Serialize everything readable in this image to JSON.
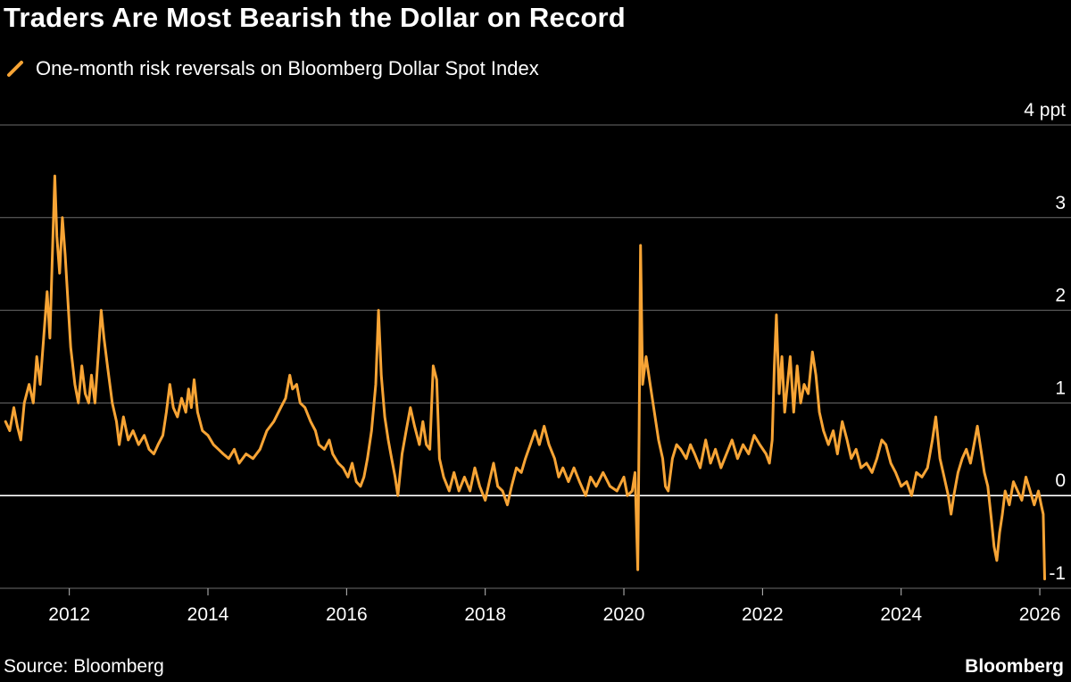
{
  "title": "Traders Are Most Bearish the Dollar on Record",
  "source": "Source: Bloomberg",
  "brand": "Bloomberg",
  "colors": {
    "series": "#f7a435",
    "grid": "#6b6b6b",
    "zero_line": "#ffffff",
    "background": "#000000",
    "text": "#ffffff"
  },
  "chart_data": {
    "type": "line",
    "title": "Traders Are Most Bearish the Dollar on Record",
    "xlabel": "",
    "ylabel": "",
    "y_unit": "ppt",
    "ylim": [
      -1,
      4
    ],
    "xlim": [
      2011.0,
      2026.45
    ],
    "grid": true,
    "legend_position": "top-left",
    "x_ticks": [
      2012,
      2014,
      2016,
      2018,
      2020,
      2022,
      2024,
      2026
    ],
    "x_tick_labels": [
      "2012",
      "2014",
      "2016",
      "2018",
      "2020",
      "2022",
      "2024",
      "2026"
    ],
    "y_ticks": [
      -1,
      0,
      1,
      2,
      3,
      4
    ],
    "y_tick_labels": [
      "-1",
      "0",
      "1",
      "2",
      "3",
      "4 ppt"
    ],
    "series": [
      {
        "name": "One-month risk reversals on Bloomberg Dollar Spot Index",
        "color": "#f7a435",
        "points": [
          [
            2011.08,
            0.8
          ],
          [
            2011.14,
            0.7
          ],
          [
            2011.2,
            0.95
          ],
          [
            2011.25,
            0.75
          ],
          [
            2011.3,
            0.6
          ],
          [
            2011.35,
            1.0
          ],
          [
            2011.42,
            1.2
          ],
          [
            2011.48,
            1.0
          ],
          [
            2011.53,
            1.5
          ],
          [
            2011.58,
            1.2
          ],
          [
            2011.63,
            1.7
          ],
          [
            2011.68,
            2.2
          ],
          [
            2011.72,
            1.7
          ],
          [
            2011.76,
            2.7
          ],
          [
            2011.79,
            3.45
          ],
          [
            2011.82,
            2.8
          ],
          [
            2011.86,
            2.4
          ],
          [
            2011.9,
            3.0
          ],
          [
            2011.94,
            2.6
          ],
          [
            2011.98,
            2.1
          ],
          [
            2012.02,
            1.6
          ],
          [
            2012.08,
            1.2
          ],
          [
            2012.13,
            1.0
          ],
          [
            2012.18,
            1.4
          ],
          [
            2012.23,
            1.1
          ],
          [
            2012.28,
            1.0
          ],
          [
            2012.32,
            1.3
          ],
          [
            2012.37,
            1.0
          ],
          [
            2012.42,
            1.55
          ],
          [
            2012.46,
            2.0
          ],
          [
            2012.5,
            1.7
          ],
          [
            2012.55,
            1.4
          ],
          [
            2012.62,
            1.0
          ],
          [
            2012.68,
            0.8
          ],
          [
            2012.72,
            0.55
          ],
          [
            2012.78,
            0.85
          ],
          [
            2012.85,
            0.6
          ],
          [
            2012.92,
            0.7
          ],
          [
            2013.0,
            0.55
          ],
          [
            2013.08,
            0.65
          ],
          [
            2013.15,
            0.5
          ],
          [
            2013.22,
            0.45
          ],
          [
            2013.28,
            0.55
          ],
          [
            2013.35,
            0.65
          ],
          [
            2013.4,
            0.9
          ],
          [
            2013.45,
            1.2
          ],
          [
            2013.5,
            0.95
          ],
          [
            2013.56,
            0.85
          ],
          [
            2013.62,
            1.05
          ],
          [
            2013.68,
            0.9
          ],
          [
            2013.72,
            1.15
          ],
          [
            2013.76,
            0.95
          ],
          [
            2013.8,
            1.25
          ],
          [
            2013.85,
            0.9
          ],
          [
            2013.92,
            0.7
          ],
          [
            2014.0,
            0.65
          ],
          [
            2014.08,
            0.55
          ],
          [
            2014.15,
            0.5
          ],
          [
            2014.22,
            0.45
          ],
          [
            2014.3,
            0.4
          ],
          [
            2014.38,
            0.5
          ],
          [
            2014.45,
            0.35
          ],
          [
            2014.55,
            0.45
          ],
          [
            2014.65,
            0.4
          ],
          [
            2014.75,
            0.5
          ],
          [
            2014.85,
            0.7
          ],
          [
            2014.95,
            0.8
          ],
          [
            2015.05,
            0.95
          ],
          [
            2015.12,
            1.05
          ],
          [
            2015.18,
            1.3
          ],
          [
            2015.22,
            1.15
          ],
          [
            2015.28,
            1.2
          ],
          [
            2015.33,
            1.0
          ],
          [
            2015.4,
            0.95
          ],
          [
            2015.48,
            0.8
          ],
          [
            2015.55,
            0.7
          ],
          [
            2015.6,
            0.55
          ],
          [
            2015.68,
            0.5
          ],
          [
            2015.75,
            0.6
          ],
          [
            2015.8,
            0.45
          ],
          [
            2015.88,
            0.35
          ],
          [
            2015.95,
            0.3
          ],
          [
            2016.02,
            0.2
          ],
          [
            2016.08,
            0.35
          ],
          [
            2016.14,
            0.15
          ],
          [
            2016.2,
            0.1
          ],
          [
            2016.25,
            0.2
          ],
          [
            2016.3,
            0.4
          ],
          [
            2016.36,
            0.7
          ],
          [
            2016.42,
            1.2
          ],
          [
            2016.46,
            2.0
          ],
          [
            2016.5,
            1.3
          ],
          [
            2016.55,
            0.85
          ],
          [
            2016.6,
            0.6
          ],
          [
            2016.65,
            0.4
          ],
          [
            2016.7,
            0.2
          ],
          [
            2016.74,
            0.0
          ],
          [
            2016.8,
            0.45
          ],
          [
            2016.86,
            0.7
          ],
          [
            2016.92,
            0.95
          ],
          [
            2016.98,
            0.75
          ],
          [
            2017.05,
            0.55
          ],
          [
            2017.1,
            0.8
          ],
          [
            2017.15,
            0.55
          ],
          [
            2017.2,
            0.5
          ],
          [
            2017.25,
            1.4
          ],
          [
            2017.3,
            1.25
          ],
          [
            2017.34,
            0.4
          ],
          [
            2017.4,
            0.2
          ],
          [
            2017.48,
            0.05
          ],
          [
            2017.55,
            0.25
          ],
          [
            2017.62,
            0.05
          ],
          [
            2017.7,
            0.2
          ],
          [
            2017.78,
            0.05
          ],
          [
            2017.85,
            0.3
          ],
          [
            2017.92,
            0.1
          ],
          [
            2018.0,
            -0.05
          ],
          [
            2018.06,
            0.15
          ],
          [
            2018.12,
            0.35
          ],
          [
            2018.18,
            0.1
          ],
          [
            2018.25,
            0.05
          ],
          [
            2018.32,
            -0.1
          ],
          [
            2018.38,
            0.1
          ],
          [
            2018.45,
            0.3
          ],
          [
            2018.52,
            0.25
          ],
          [
            2018.58,
            0.4
          ],
          [
            2018.65,
            0.55
          ],
          [
            2018.72,
            0.7
          ],
          [
            2018.78,
            0.55
          ],
          [
            2018.85,
            0.75
          ],
          [
            2018.92,
            0.55
          ],
          [
            2019.0,
            0.4
          ],
          [
            2019.06,
            0.2
          ],
          [
            2019.12,
            0.3
          ],
          [
            2019.2,
            0.15
          ],
          [
            2019.28,
            0.3
          ],
          [
            2019.36,
            0.15
          ],
          [
            2019.45,
            0.0
          ],
          [
            2019.52,
            0.2
          ],
          [
            2019.6,
            0.1
          ],
          [
            2019.7,
            0.25
          ],
          [
            2019.8,
            0.1
          ],
          [
            2019.9,
            0.05
          ],
          [
            2020.0,
            0.2
          ],
          [
            2020.05,
            0.0
          ],
          [
            2020.12,
            0.05
          ],
          [
            2020.16,
            0.25
          ],
          [
            2020.2,
            -0.8
          ],
          [
            2020.22,
            0.7
          ],
          [
            2020.24,
            2.7
          ],
          [
            2020.27,
            1.2
          ],
          [
            2020.32,
            1.5
          ],
          [
            2020.38,
            1.2
          ],
          [
            2020.44,
            0.9
          ],
          [
            2020.5,
            0.6
          ],
          [
            2020.56,
            0.4
          ],
          [
            2020.6,
            0.1
          ],
          [
            2020.64,
            0.05
          ],
          [
            2020.7,
            0.4
          ],
          [
            2020.76,
            0.55
          ],
          [
            2020.82,
            0.5
          ],
          [
            2020.9,
            0.4
          ],
          [
            2020.96,
            0.55
          ],
          [
            2021.02,
            0.45
          ],
          [
            2021.1,
            0.3
          ],
          [
            2021.18,
            0.6
          ],
          [
            2021.25,
            0.35
          ],
          [
            2021.32,
            0.5
          ],
          [
            2021.4,
            0.3
          ],
          [
            2021.48,
            0.45
          ],
          [
            2021.56,
            0.6
          ],
          [
            2021.64,
            0.4
          ],
          [
            2021.72,
            0.55
          ],
          [
            2021.8,
            0.45
          ],
          [
            2021.88,
            0.65
          ],
          [
            2021.96,
            0.55
          ],
          [
            2022.05,
            0.45
          ],
          [
            2022.1,
            0.35
          ],
          [
            2022.14,
            0.6
          ],
          [
            2022.17,
            1.4
          ],
          [
            2022.2,
            1.95
          ],
          [
            2022.24,
            1.1
          ],
          [
            2022.28,
            1.5
          ],
          [
            2022.32,
            0.9
          ],
          [
            2022.36,
            1.2
          ],
          [
            2022.4,
            1.5
          ],
          [
            2022.45,
            0.9
          ],
          [
            2022.5,
            1.4
          ],
          [
            2022.55,
            1.0
          ],
          [
            2022.6,
            1.2
          ],
          [
            2022.66,
            1.1
          ],
          [
            2022.72,
            1.55
          ],
          [
            2022.77,
            1.3
          ],
          [
            2022.82,
            0.9
          ],
          [
            2022.88,
            0.7
          ],
          [
            2022.95,
            0.55
          ],
          [
            2023.02,
            0.7
          ],
          [
            2023.08,
            0.45
          ],
          [
            2023.15,
            0.8
          ],
          [
            2023.22,
            0.6
          ],
          [
            2023.28,
            0.4
          ],
          [
            2023.35,
            0.5
          ],
          [
            2023.42,
            0.3
          ],
          [
            2023.5,
            0.35
          ],
          [
            2023.58,
            0.25
          ],
          [
            2023.65,
            0.4
          ],
          [
            2023.72,
            0.6
          ],
          [
            2023.78,
            0.55
          ],
          [
            2023.85,
            0.35
          ],
          [
            2023.92,
            0.25
          ],
          [
            2024.0,
            0.1
          ],
          [
            2024.08,
            0.15
          ],
          [
            2024.15,
            0.0
          ],
          [
            2024.22,
            0.25
          ],
          [
            2024.3,
            0.2
          ],
          [
            2024.38,
            0.3
          ],
          [
            2024.45,
            0.6
          ],
          [
            2024.5,
            0.85
          ],
          [
            2024.56,
            0.4
          ],
          [
            2024.62,
            0.2
          ],
          [
            2024.68,
            0.0
          ],
          [
            2024.72,
            -0.2
          ],
          [
            2024.76,
            0.0
          ],
          [
            2024.82,
            0.25
          ],
          [
            2024.88,
            0.4
          ],
          [
            2024.94,
            0.5
          ],
          [
            2025.0,
            0.35
          ],
          [
            2025.05,
            0.55
          ],
          [
            2025.1,
            0.75
          ],
          [
            2025.15,
            0.5
          ],
          [
            2025.2,
            0.25
          ],
          [
            2025.25,
            0.1
          ],
          [
            2025.3,
            -0.25
          ],
          [
            2025.34,
            -0.55
          ],
          [
            2025.38,
            -0.7
          ],
          [
            2025.42,
            -0.4
          ],
          [
            2025.46,
            -0.2
          ],
          [
            2025.5,
            0.05
          ],
          [
            2025.56,
            -0.1
          ],
          [
            2025.62,
            0.15
          ],
          [
            2025.68,
            0.05
          ],
          [
            2025.74,
            -0.05
          ],
          [
            2025.8,
            0.2
          ],
          [
            2025.86,
            0.05
          ],
          [
            2025.92,
            -0.1
          ],
          [
            2025.98,
            0.05
          ],
          [
            2026.02,
            -0.1
          ],
          [
            2026.05,
            -0.2
          ],
          [
            2026.07,
            -0.9
          ]
        ]
      }
    ]
  }
}
